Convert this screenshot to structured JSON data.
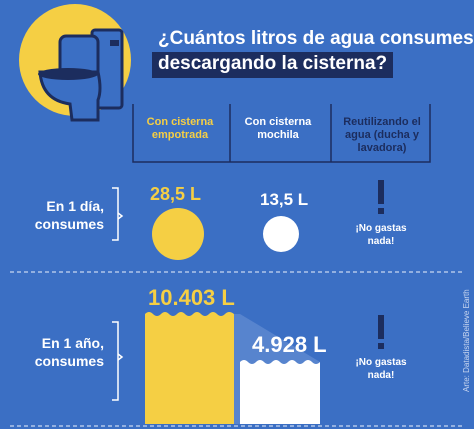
{
  "title": {
    "line1": "¿Cuántos litros de agua consumes",
    "line2": "descargando la cisterna?"
  },
  "columns": [
    "Con cisterna empotrada",
    "Con cisterna mochila",
    "Reutilizando el agua (ducha y lavadora)"
  ],
  "rows": {
    "day": {
      "label": "En 1 día, consumes",
      "values": [
        "28,5 L",
        "13,5 L"
      ],
      "note": "¡No gastas nada!"
    },
    "year": {
      "label": "En 1 año, consumes",
      "values": [
        "10.403 L",
        "4.928 L"
      ],
      "note": "¡No gastas nada!"
    }
  },
  "credit": "Arte: Datadista/Believe Earth",
  "colors": {
    "background": "#3b6fc4",
    "accent_yellow": "#f5cf44",
    "navy": "#1c2d5e",
    "white": "#ffffff"
  },
  "icons": [
    "toilet-icon",
    "exclamation-icon"
  ]
}
